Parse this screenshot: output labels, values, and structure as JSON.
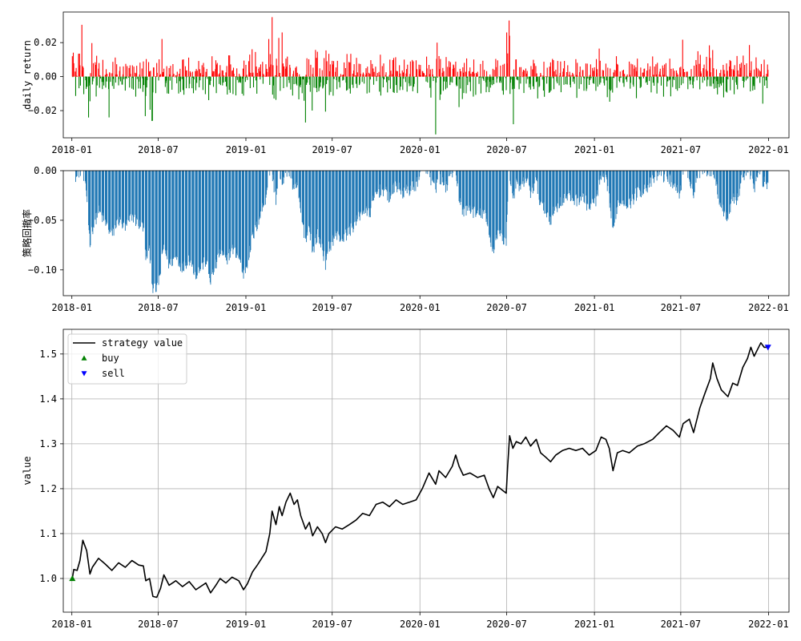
{
  "chart_data": [
    {
      "type": "bar",
      "ylabel": "daily return",
      "x_range": [
        "2017-12-14",
        "2022-02-13"
      ],
      "ylim": [
        -0.036,
        0.038
      ],
      "x_ticks": [
        "2018-01",
        "2018-07",
        "2019-01",
        "2019-07",
        "2020-01",
        "2020-07",
        "2021-01",
        "2021-07",
        "2022-01"
      ],
      "y_ticks": [
        -0.02,
        0.0,
        0.02
      ],
      "y_tick_labels": [
        "−0.02",
        "0.00",
        "0.02"
      ],
      "positive_color": "#ff0000",
      "negative_color": "#008000",
      "start": "2018-01-02",
      "end": "2021-12-31",
      "notable_values": [
        {
          "date": "2018-01-02",
          "value": 0.012
        },
        {
          "date": "2018-03-20",
          "value": -0.024
        },
        {
          "date": "2018-06-19",
          "value": -0.026
        },
        {
          "date": "2019-02-25",
          "value": 0.035
        },
        {
          "date": "2019-03-18",
          "value": 0.026
        },
        {
          "date": "2019-05-06",
          "value": -0.027
        },
        {
          "date": "2020-02-03",
          "value": -0.034
        },
        {
          "date": "2020-02-06",
          "value": 0.02
        },
        {
          "date": "2020-07-06",
          "value": 0.033
        },
        {
          "date": "2020-07-15",
          "value": -0.028
        },
        {
          "date": "2021-12-31",
          "value": 0.004
        }
      ]
    },
    {
      "type": "bar",
      "ylabel": "策略回撤率",
      "x_range": [
        "2017-12-14",
        "2022-02-13"
      ],
      "ylim": [
        -0.126,
        0.0
      ],
      "x_ticks": [
        "2018-01",
        "2018-07",
        "2019-01",
        "2019-07",
        "2020-01",
        "2020-07",
        "2021-01",
        "2021-07",
        "2022-01"
      ],
      "y_ticks": [
        -0.1,
        -0.05,
        0.0
      ],
      "y_tick_labels": [
        "−0.10",
        "−0.05",
        "0.00"
      ],
      "bar_color": "#1f77b4",
      "drawdown_of": "strategy value"
    },
    {
      "type": "line",
      "ylabel": "value",
      "x_range": [
        "2017-12-14",
        "2022-02-13"
      ],
      "ylim": [
        0.925,
        1.555
      ],
      "grid": true,
      "legend": "top-left",
      "x_ticks": [
        "2018-01",
        "2018-07",
        "2019-01",
        "2019-07",
        "2020-01",
        "2020-07",
        "2021-01",
        "2021-07",
        "2022-01"
      ],
      "y_ticks": [
        1.0,
        1.1,
        1.2,
        1.3,
        1.4,
        1.5
      ],
      "y_tick_labels": [
        "1.0",
        "1.1",
        "1.2",
        "1.3",
        "1.4",
        "1.5"
      ],
      "series": [
        {
          "name": "strategy value",
          "color": "#000000",
          "points": [
            [
              "2018-01-02",
              1.0
            ],
            [
              "2018-01-05",
              1.02
            ],
            [
              "2018-01-12",
              1.018
            ],
            [
              "2018-01-18",
              1.04
            ],
            [
              "2018-01-24",
              1.085
            ],
            [
              "2018-02-01",
              1.062
            ],
            [
              "2018-02-08",
              1.01
            ],
            [
              "2018-02-13",
              1.025
            ],
            [
              "2018-02-26",
              1.045
            ],
            [
              "2018-03-12",
              1.032
            ],
            [
              "2018-03-26",
              1.018
            ],
            [
              "2018-04-09",
              1.035
            ],
            [
              "2018-04-23",
              1.025
            ],
            [
              "2018-05-07",
              1.04
            ],
            [
              "2018-05-21",
              1.03
            ],
            [
              "2018-05-31",
              1.028
            ],
            [
              "2018-06-05",
              0.995
            ],
            [
              "2018-06-13",
              1.0
            ],
            [
              "2018-06-20",
              0.96
            ],
            [
              "2018-06-28",
              0.958
            ],
            [
              "2018-07-06",
              0.978
            ],
            [
              "2018-07-13",
              1.008
            ],
            [
              "2018-07-24",
              0.985
            ],
            [
              "2018-08-07",
              0.995
            ],
            [
              "2018-08-21",
              0.982
            ],
            [
              "2018-09-04",
              0.993
            ],
            [
              "2018-09-18",
              0.975
            ],
            [
              "2018-10-09",
              0.99
            ],
            [
              "2018-10-19",
              0.968
            ],
            [
              "2018-10-30",
              0.985
            ],
            [
              "2018-11-08",
              1.0
            ],
            [
              "2018-11-20",
              0.99
            ],
            [
              "2018-12-03",
              1.003
            ],
            [
              "2018-12-17",
              0.995
            ],
            [
              "2018-12-27",
              0.975
            ],
            [
              "2019-01-04",
              0.988
            ],
            [
              "2019-01-15",
              1.015
            ],
            [
              "2019-01-25",
              1.03
            ],
            [
              "2019-02-12",
              1.06
            ],
            [
              "2019-02-20",
              1.1
            ],
            [
              "2019-02-25",
              1.15
            ],
            [
              "2019-03-05",
              1.12
            ],
            [
              "2019-03-12",
              1.16
            ],
            [
              "2019-03-18",
              1.14
            ],
            [
              "2019-03-26",
              1.17
            ],
            [
              "2019-04-04",
              1.19
            ],
            [
              "2019-04-12",
              1.165
            ],
            [
              "2019-04-19",
              1.175
            ],
            [
              "2019-04-26",
              1.14
            ],
            [
              "2019-05-06",
              1.11
            ],
            [
              "2019-05-14",
              1.125
            ],
            [
              "2019-05-21",
              1.095
            ],
            [
              "2019-05-31",
              1.115
            ],
            [
              "2019-06-10",
              1.1
            ],
            [
              "2019-06-17",
              1.08
            ],
            [
              "2019-06-24",
              1.1
            ],
            [
              "2019-07-08",
              1.115
            ],
            [
              "2019-07-22",
              1.11
            ],
            [
              "2019-08-06",
              1.12
            ],
            [
              "2019-08-20",
              1.13
            ],
            [
              "2019-09-03",
              1.145
            ],
            [
              "2019-09-17",
              1.14
            ],
            [
              "2019-10-01",
              1.165
            ],
            [
              "2019-10-15",
              1.17
            ],
            [
              "2019-10-29",
              1.16
            ],
            [
              "2019-11-12",
              1.175
            ],
            [
              "2019-11-26",
              1.165
            ],
            [
              "2019-12-10",
              1.17
            ],
            [
              "2019-12-24",
              1.175
            ],
            [
              "2020-01-06",
              1.2
            ],
            [
              "2020-01-20",
              1.235
            ],
            [
              "2020-02-03",
              1.21
            ],
            [
              "2020-02-10",
              1.24
            ],
            [
              "2020-02-24",
              1.225
            ],
            [
              "2020-03-09",
              1.25
            ],
            [
              "2020-03-16",
              1.275
            ],
            [
              "2020-03-23",
              1.25
            ],
            [
              "2020-04-01",
              1.23
            ],
            [
              "2020-04-15",
              1.235
            ],
            [
              "2020-05-01",
              1.225
            ],
            [
              "2020-05-15",
              1.23
            ],
            [
              "2020-05-25",
              1.2
            ],
            [
              "2020-06-03",
              1.18
            ],
            [
              "2020-06-12",
              1.205
            ],
            [
              "2020-06-24",
              1.195
            ],
            [
              "2020-06-30",
              1.19
            ],
            [
              "2020-07-03",
              1.25
            ],
            [
              "2020-07-07",
              1.318
            ],
            [
              "2020-07-14",
              1.29
            ],
            [
              "2020-07-21",
              1.305
            ],
            [
              "2020-07-31",
              1.3
            ],
            [
              "2020-08-10",
              1.315
            ],
            [
              "2020-08-20",
              1.295
            ],
            [
              "2020-09-01",
              1.31
            ],
            [
              "2020-09-10",
              1.28
            ],
            [
              "2020-09-21",
              1.27
            ],
            [
              "2020-10-01",
              1.26
            ],
            [
              "2020-10-12",
              1.275
            ],
            [
              "2020-10-26",
              1.285
            ],
            [
              "2020-11-09",
              1.29
            ],
            [
              "2020-11-23",
              1.285
            ],
            [
              "2020-12-07",
              1.29
            ],
            [
              "2020-12-21",
              1.275
            ],
            [
              "2021-01-04",
              1.285
            ],
            [
              "2021-01-15",
              1.315
            ],
            [
              "2021-01-25",
              1.31
            ],
            [
              "2021-02-01",
              1.29
            ],
            [
              "2021-02-09",
              1.24
            ],
            [
              "2021-02-18",
              1.28
            ],
            [
              "2021-03-01",
              1.285
            ],
            [
              "2021-03-15",
              1.28
            ],
            [
              "2021-04-01",
              1.295
            ],
            [
              "2021-04-15",
              1.3
            ],
            [
              "2021-05-03",
              1.31
            ],
            [
              "2021-05-17",
              1.325
            ],
            [
              "2021-06-01",
              1.34
            ],
            [
              "2021-06-15",
              1.33
            ],
            [
              "2021-06-28",
              1.315
            ],
            [
              "2021-07-06",
              1.345
            ],
            [
              "2021-07-19",
              1.355
            ],
            [
              "2021-07-28",
              1.325
            ],
            [
              "2021-08-10",
              1.38
            ],
            [
              "2021-08-20",
              1.41
            ],
            [
              "2021-09-01",
              1.445
            ],
            [
              "2021-09-06",
              1.48
            ],
            [
              "2021-09-15",
              1.445
            ],
            [
              "2021-09-24",
              1.42
            ],
            [
              "2021-10-08",
              1.405
            ],
            [
              "2021-10-18",
              1.435
            ],
            [
              "2021-10-28",
              1.43
            ],
            [
              "2021-11-08",
              1.47
            ],
            [
              "2021-11-18",
              1.49
            ],
            [
              "2021-11-25",
              1.515
            ],
            [
              "2021-12-02",
              1.495
            ],
            [
              "2021-12-09",
              1.51
            ],
            [
              "2021-12-16",
              1.525
            ],
            [
              "2021-12-23",
              1.515
            ],
            [
              "2021-12-31",
              1.515
            ]
          ]
        },
        {
          "name": "buy",
          "type": "scatter",
          "marker": "triangle-up",
          "color": "#008000",
          "points": [
            [
              "2018-01-02",
              1.0
            ]
          ]
        },
        {
          "name": "sell",
          "type": "scatter",
          "marker": "triangle-down",
          "color": "#0000ff",
          "points": [
            [
              "2021-12-31",
              1.515
            ]
          ]
        }
      ]
    }
  ]
}
